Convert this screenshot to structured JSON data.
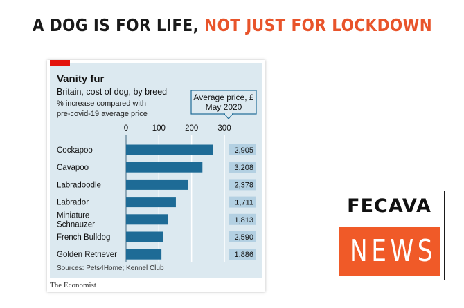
{
  "headline": {
    "part1": "A DOG IS FOR LIFE,",
    "part2": "NOT JUST FOR LOCKDOWN"
  },
  "chart_data": {
    "type": "bar",
    "title": "Vanity fur",
    "subtitle": "Britain, cost of dog, by breed",
    "note_line1": "% increase compared with",
    "note_line2": "pre-covid-19 average price",
    "legend_line1": "Average price, £",
    "legend_line2": "May 2020",
    "categories": [
      [
        "Cockapoo"
      ],
      [
        "Cavapoo"
      ],
      [
        "Labradoodle"
      ],
      [
        "Labrador"
      ],
      [
        "Miniature",
        "Schnauzer"
      ],
      [
        "French Bulldog"
      ],
      [
        "Golden Retriever"
      ]
    ],
    "values": [
      265,
      233,
      190,
      152,
      127,
      112,
      108
    ],
    "average_price": [
      "2,905",
      "3,208",
      "2,378",
      "1,711",
      "1,813",
      "2,590",
      "1,886"
    ],
    "xlim": [
      0,
      300
    ],
    "xticks": [
      "0",
      "100",
      "200",
      "300"
    ],
    "grid": true,
    "bar_color": "#1e6b96",
    "source": "Sources: Pets4Home; Kennel Club"
  },
  "publisher": "The Economist",
  "badge": {
    "top": "FECAVA",
    "bottom": "NEWS",
    "accent_color": "#f05a28"
  }
}
